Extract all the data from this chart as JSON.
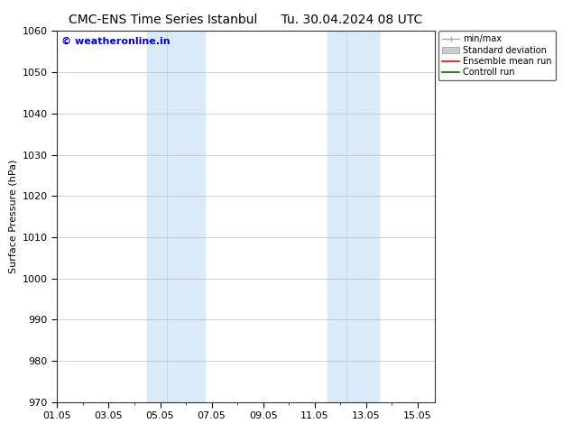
{
  "title": "CMC-ENS Time Series Istanbul      Tu. 30.04.2024 08 UTC",
  "ylabel": "Surface Pressure (hPa)",
  "ylim": [
    970,
    1060
  ],
  "yticks": [
    970,
    980,
    990,
    1000,
    1010,
    1020,
    1030,
    1040,
    1050,
    1060
  ],
  "xtick_labels": [
    "01.05",
    "03.05",
    "05.05",
    "07.05",
    "09.05",
    "11.05",
    "13.05",
    "15.05"
  ],
  "xtick_positions": [
    0,
    2,
    4,
    6,
    8,
    10,
    12,
    14
  ],
  "xlim": [
    0,
    14.667
  ],
  "shaded_bands": [
    {
      "x_start": 3.5,
      "x_end": 4.25,
      "color": "#daeaf8"
    },
    {
      "x_start": 4.25,
      "x_end": 5.75,
      "color": "#daeaf8"
    },
    {
      "x_start": 10.5,
      "x_end": 11.25,
      "color": "#daeaf8"
    },
    {
      "x_start": 11.25,
      "x_end": 12.5,
      "color": "#daeaf8"
    }
  ],
  "shade_color": "#daeaf8",
  "grid_color": "#bbbbbb",
  "watermark_text": "© weatheronline.in",
  "watermark_color": "#0000cc",
  "legend_entries": [
    {
      "label": "min/max",
      "color": "#aaaaaa",
      "type": "minmax"
    },
    {
      "label": "Standard deviation",
      "color": "#cccccc",
      "type": "patch"
    },
    {
      "label": "Ensemble mean run",
      "color": "#ff0000",
      "type": "line"
    },
    {
      "label": "Controll run",
      "color": "#006600",
      "type": "line"
    }
  ],
  "background_color": "#ffffff",
  "title_fontsize": 10,
  "label_fontsize": 8,
  "tick_fontsize": 8
}
